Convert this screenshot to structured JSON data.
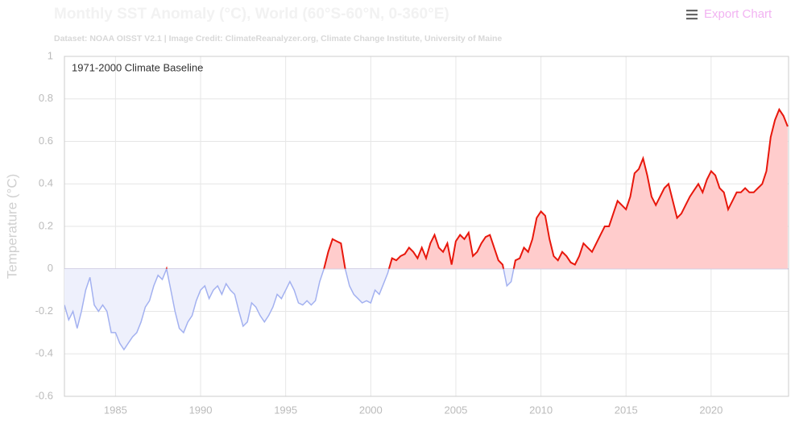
{
  "chart_data": {
    "type": "line",
    "title": "Monthly SST Anomaly (°C), World (60°S-60°N, 0-360°E)",
    "subtitle": "Dataset: NOAA OISST V2.1 | Image Credit: ClimateReanalyzer.org, Climate Change Institute, University of Maine",
    "export_button": "Export Chart",
    "annotation": "1971-2000 Climate Baseline",
    "y_label": "Temperature (°C)",
    "x": [
      1982,
      1982.25,
      1982.5,
      1982.75,
      1983,
      1983.25,
      1983.5,
      1983.75,
      1984,
      1984.25,
      1984.5,
      1984.75,
      1985,
      1985.25,
      1985.5,
      1985.75,
      1986,
      1986.25,
      1986.5,
      1986.75,
      1987,
      1987.25,
      1987.5,
      1987.75,
      1988,
      1988.25,
      1988.5,
      1988.75,
      1989,
      1989.25,
      1989.5,
      1989.75,
      1990,
      1990.25,
      1990.5,
      1990.75,
      1991,
      1991.25,
      1991.5,
      1991.75,
      1992,
      1992.25,
      1992.5,
      1992.75,
      1993,
      1993.25,
      1993.5,
      1993.75,
      1994,
      1994.25,
      1994.5,
      1994.75,
      1995,
      1995.25,
      1995.5,
      1995.75,
      1996,
      1996.25,
      1996.5,
      1996.75,
      1997,
      1997.25,
      1997.5,
      1997.75,
      1998,
      1998.25,
      1998.5,
      1998.75,
      1999,
      1999.25,
      1999.5,
      1999.75,
      2000,
      2000.25,
      2000.5,
      2000.75,
      2001,
      2001.25,
      2001.5,
      2001.75,
      2002,
      2002.25,
      2002.5,
      2002.75,
      2003,
      2003.25,
      2003.5,
      2003.75,
      2004,
      2004.25,
      2004.5,
      2004.75,
      2005,
      2005.25,
      2005.5,
      2005.75,
      2006,
      2006.25,
      2006.5,
      2006.75,
      2007,
      2007.25,
      2007.5,
      2007.75,
      2008,
      2008.25,
      2008.5,
      2008.75,
      2009,
      2009.25,
      2009.5,
      2009.75,
      2010,
      2010.25,
      2010.5,
      2010.75,
      2011,
      2011.25,
      2011.5,
      2011.75,
      2012,
      2012.25,
      2012.5,
      2012.75,
      2013,
      2013.25,
      2013.5,
      2013.75,
      2014,
      2014.25,
      2014.5,
      2014.75,
      2015,
      2015.25,
      2015.5,
      2015.75,
      2016,
      2016.25,
      2016.5,
      2016.75,
      2017,
      2017.25,
      2017.5,
      2017.75,
      2018,
      2018.25,
      2018.5,
      2018.75,
      2019,
      2019.25,
      2019.5,
      2019.75,
      2020,
      2020.25,
      2020.5,
      2020.75,
      2021,
      2021.25,
      2021.5,
      2021.75,
      2022,
      2022.25,
      2022.5,
      2022.75,
      2023,
      2023.25,
      2023.5,
      2023.75,
      2024,
      2024.25,
      2024.5
    ],
    "series": [
      {
        "color": "#e8170c",
        "negative_color": "#a3b1f0",
        "fill_color": "#ffcccc",
        "negative_fill_color": "#eef0fc",
        "values": [
          -0.17,
          -0.24,
          -0.2,
          -0.28,
          -0.2,
          -0.1,
          -0.04,
          -0.17,
          -0.2,
          -0.17,
          -0.2,
          -0.3,
          -0.3,
          -0.35,
          -0.38,
          -0.35,
          -0.32,
          -0.3,
          -0.25,
          -0.18,
          -0.15,
          -0.08,
          -0.03,
          -0.05,
          0.0,
          -0.1,
          -0.2,
          -0.28,
          -0.3,
          -0.25,
          -0.22,
          -0.15,
          -0.1,
          -0.08,
          -0.14,
          -0.1,
          -0.08,
          -0.12,
          -0.07,
          -0.1,
          -0.12,
          -0.2,
          -0.27,
          -0.25,
          -0.16,
          -0.18,
          -0.22,
          -0.25,
          -0.22,
          -0.18,
          -0.12,
          -0.14,
          -0.1,
          -0.06,
          -0.1,
          -0.16,
          -0.17,
          -0.15,
          -0.17,
          -0.15,
          -0.06,
          0.0,
          0.08,
          0.14,
          0.13,
          0.12,
          0.0,
          -0.08,
          -0.12,
          -0.14,
          -0.16,
          -0.15,
          -0.16,
          -0.1,
          -0.12,
          -0.07,
          -0.02,
          0.05,
          0.04,
          0.06,
          0.07,
          0.1,
          0.08,
          0.05,
          0.1,
          0.05,
          0.12,
          0.16,
          0.1,
          0.08,
          0.12,
          0.02,
          0.13,
          0.16,
          0.14,
          0.17,
          0.06,
          0.08,
          0.12,
          0.15,
          0.16,
          0.1,
          0.04,
          0.02,
          -0.08,
          -0.06,
          0.04,
          0.05,
          0.1,
          0.08,
          0.14,
          0.24,
          0.27,
          0.25,
          0.14,
          0.06,
          0.04,
          0.08,
          0.06,
          0.03,
          0.02,
          0.06,
          0.12,
          0.1,
          0.08,
          0.12,
          0.16,
          0.2,
          0.2,
          0.26,
          0.32,
          0.3,
          0.28,
          0.34,
          0.45,
          0.47,
          0.52,
          0.44,
          0.34,
          0.3,
          0.34,
          0.38,
          0.4,
          0.32,
          0.24,
          0.26,
          0.3,
          0.34,
          0.37,
          0.4,
          0.36,
          0.42,
          0.46,
          0.44,
          0.38,
          0.36,
          0.28,
          0.32,
          0.36,
          0.36,
          0.38,
          0.36,
          0.36,
          0.38,
          0.4,
          0.46,
          0.62,
          0.7,
          0.75,
          0.72,
          0.67
        ]
      }
    ],
    "xlim": [
      1982,
      2024.55
    ],
    "xticks": [
      1985,
      1990,
      1995,
      2000,
      2005,
      2010,
      2015,
      2020
    ],
    "ylim": [
      -0.6,
      1
    ],
    "yticks": [
      -0.6,
      -0.4,
      -0.2,
      0,
      0.2,
      0.4,
      0.6,
      0.8,
      1
    ],
    "grid": true
  }
}
